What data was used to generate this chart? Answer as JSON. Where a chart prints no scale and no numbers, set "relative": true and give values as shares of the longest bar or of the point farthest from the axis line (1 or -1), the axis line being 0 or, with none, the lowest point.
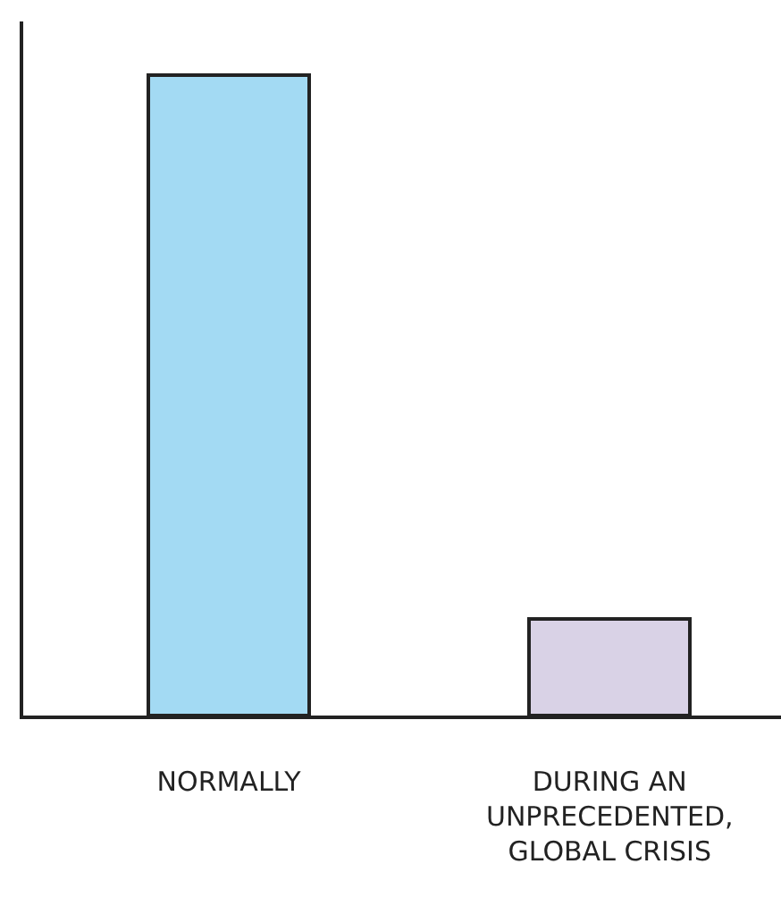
{
  "chart_data": {
    "type": "bar",
    "relative": true,
    "categories": [
      "NORMALLY",
      "DURING AN\nUNPRECEDENTED,\nGLOBAL CRISIS"
    ],
    "values": [
      1,
      0.15
    ],
    "colors": [
      "#a3daf3",
      "#d9d2e6"
    ]
  }
}
